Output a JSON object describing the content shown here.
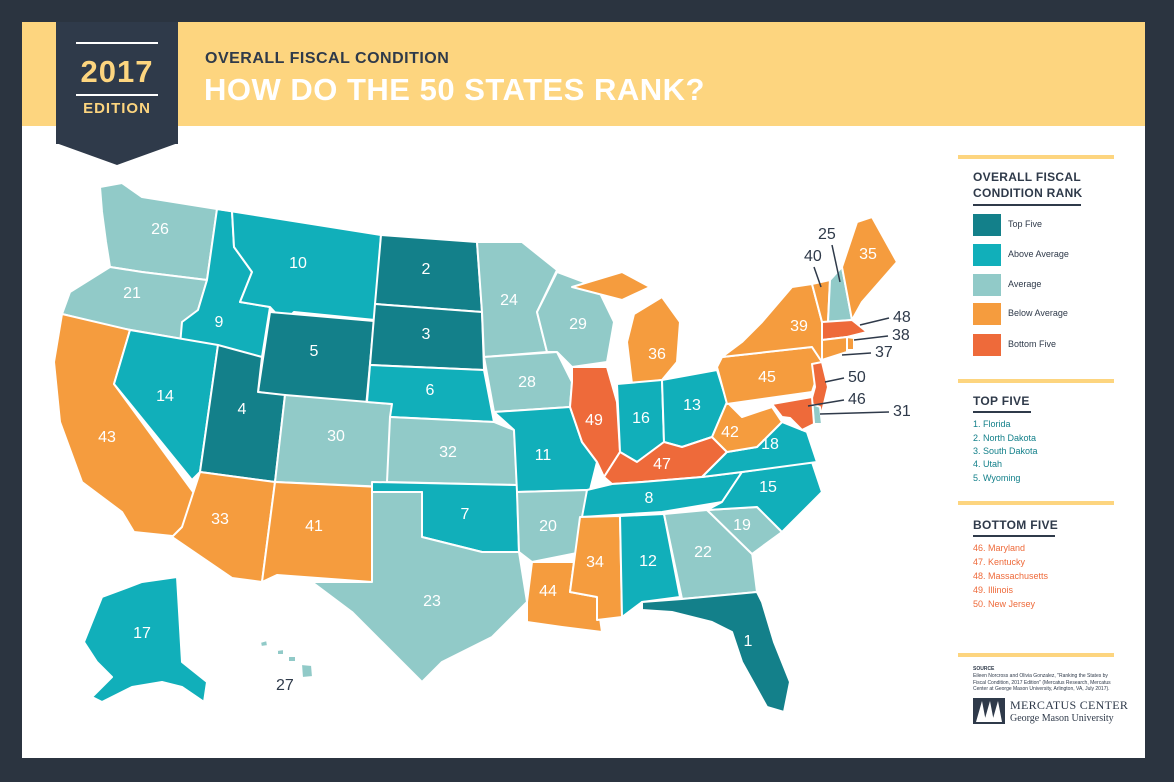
{
  "header": {
    "year": "2017",
    "edition": "EDITION",
    "kicker": "OVERALL FISCAL CONDITION",
    "title": "HOW DO THE 50 STATES RANK?"
  },
  "colors": {
    "top_five": "#13808a",
    "above_average": "#11afba",
    "average": "#91cac8",
    "below_average": "#f59c3e",
    "bottom_five": "#ee6a3a",
    "header_yellow": "#fdd57f",
    "navy": "#2f3a4a"
  },
  "legend": {
    "title_line1": "OVERALL FISCAL",
    "title_line2": "CONDITION RANK",
    "items": [
      {
        "label": "Top Five",
        "color": "#13808a"
      },
      {
        "label": "Above Average",
        "color": "#11afba"
      },
      {
        "label": "Average",
        "color": "#91cac8"
      },
      {
        "label": "Below Average",
        "color": "#f59c3e"
      },
      {
        "label": "Bottom Five",
        "color": "#ee6a3a"
      }
    ]
  },
  "top_five": {
    "title": "TOP FIVE",
    "items": [
      "1.  Florida",
      "2.  North Dakota",
      "3.  South Dakota",
      "4.  Utah",
      "5.  Wyoming"
    ]
  },
  "bottom_five": {
    "title": "BOTTOM FIVE",
    "items": [
      "46.  Maryland",
      "47.  Kentucky",
      "48.  Massachusetts",
      "49.  Illinois",
      "50.  New Jersey"
    ]
  },
  "source": {
    "heading": "SOURCE",
    "text": "Eileen Norcross and Olivia Gonzalez, \"Ranking the States by Fiscal Condition, 2017 Edition\" (Mercatus Research, Mercatus Center at George Mason University, Arlington, VA, July 2017)."
  },
  "logo": {
    "name": "MERCATUS CENTER",
    "sub": "George Mason University"
  },
  "states": {
    "WA": {
      "rank": 26,
      "category": "average"
    },
    "OR": {
      "rank": 21,
      "category": "average"
    },
    "CA": {
      "rank": 43,
      "category": "below_average"
    },
    "ID": {
      "rank": 9,
      "category": "above_average"
    },
    "NV": {
      "rank": 14,
      "category": "above_average"
    },
    "MT": {
      "rank": 10,
      "category": "above_average"
    },
    "WY": {
      "rank": 5,
      "category": "top_five"
    },
    "UT": {
      "rank": 4,
      "category": "top_five"
    },
    "AZ": {
      "rank": 33,
      "category": "below_average"
    },
    "CO": {
      "rank": 30,
      "category": "average"
    },
    "NM": {
      "rank": 41,
      "category": "below_average"
    },
    "ND": {
      "rank": 2,
      "category": "top_five"
    },
    "SD": {
      "rank": 3,
      "category": "top_five"
    },
    "NE": {
      "rank": 6,
      "category": "above_average"
    },
    "KS": {
      "rank": 32,
      "category": "average"
    },
    "OK": {
      "rank": 7,
      "category": "above_average"
    },
    "TX": {
      "rank": 23,
      "category": "average"
    },
    "MN": {
      "rank": 24,
      "category": "average"
    },
    "IA": {
      "rank": 28,
      "category": "average"
    },
    "MO": {
      "rank": 11,
      "category": "above_average"
    },
    "AR": {
      "rank": 20,
      "category": "average"
    },
    "LA": {
      "rank": 44,
      "category": "below_average"
    },
    "WI": {
      "rank": 29,
      "category": "average"
    },
    "IL": {
      "rank": 49,
      "category": "bottom_five"
    },
    "MI": {
      "rank": 36,
      "category": "below_average"
    },
    "IN": {
      "rank": 16,
      "category": "above_average"
    },
    "OH": {
      "rank": 13,
      "category": "above_average"
    },
    "KY": {
      "rank": 47,
      "category": "bottom_five"
    },
    "TN": {
      "rank": 8,
      "category": "above_average"
    },
    "MS": {
      "rank": 34,
      "category": "below_average"
    },
    "AL": {
      "rank": 12,
      "category": "above_average"
    },
    "GA": {
      "rank": 22,
      "category": "average"
    },
    "FL": {
      "rank": 1,
      "category": "top_five"
    },
    "SC": {
      "rank": 19,
      "category": "average"
    },
    "NC": {
      "rank": 15,
      "category": "above_average"
    },
    "VA": {
      "rank": 18,
      "category": "above_average"
    },
    "WV": {
      "rank": 42,
      "category": "below_average"
    },
    "PA": {
      "rank": 45,
      "category": "below_average"
    },
    "NY": {
      "rank": 39,
      "category": "below_average"
    },
    "VT": {
      "rank": 40,
      "category": "below_average"
    },
    "NH": {
      "rank": 25,
      "category": "average"
    },
    "ME": {
      "rank": 35,
      "category": "below_average"
    },
    "MA": {
      "rank": 48,
      "category": "bottom_five"
    },
    "RI": {
      "rank": 38,
      "category": "below_average"
    },
    "CT": {
      "rank": 37,
      "category": "below_average"
    },
    "NJ": {
      "rank": 50,
      "category": "bottom_five"
    },
    "DE": {
      "rank": 31,
      "category": "average"
    },
    "MD": {
      "rank": 46,
      "category": "bottom_five"
    },
    "AK": {
      "rank": 17,
      "category": "above_average"
    },
    "HI": {
      "rank": 27,
      "category": "average"
    }
  }
}
